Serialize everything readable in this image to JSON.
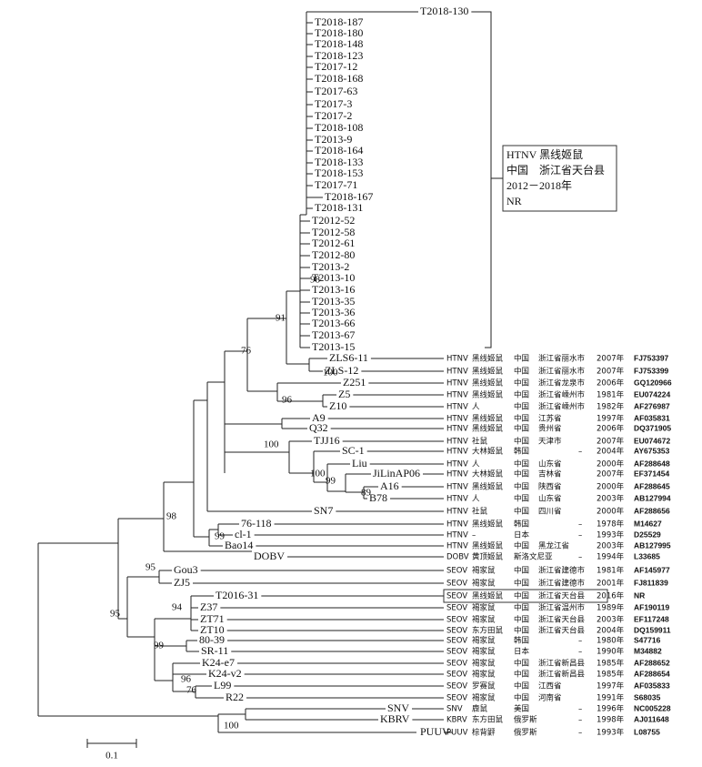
{
  "clade_leaves": [
    "T2018-130",
    "T2018-187",
    "T2018-180",
    "T2018-148",
    "T2018-123",
    "T2017-12",
    "T2018-168",
    "T2017-63",
    "T2017-3",
    "T2017-2",
    "T2018-108",
    "T2013-9",
    "T2018-164",
    "T2018-133",
    "T2018-153",
    "T2017-71",
    "T2018-167",
    "T2018-131",
    "T2012-52",
    "T2012-58",
    "T2012-61",
    "T2012-80",
    "T2013-2",
    "T2013-10",
    "T2013-16",
    "T2013-35",
    "T2013-36",
    "T2013-66",
    "T2013-67",
    "T2013-15"
  ],
  "group_box": {
    "lines": [
      "HTNV 黑线姬鼠",
      "中国　浙江省天台县",
      "2012－2018年",
      "NR"
    ]
  },
  "annotated_leaves": [
    {
      "label": "ZLS6-11",
      "virus": "HTNV",
      "host": "黑线姬鼠",
      "country": "中国",
      "location": "浙江省丽水市",
      "year": "2007年",
      "accession": "FJ753397"
    },
    {
      "label": "ZLS-12",
      "virus": "HTNV",
      "host": "黑线姬鼠",
      "country": "中国",
      "location": "浙江省丽水市",
      "year": "2007年",
      "accession": "FJ753399"
    },
    {
      "label": "Z251",
      "virus": "HTNV",
      "host": "黑线姬鼠",
      "country": "中国",
      "location": "浙江省龙泉市",
      "year": "2006年",
      "accession": "GQ120966"
    },
    {
      "label": "Z5",
      "virus": "HTNV",
      "host": "黑线姬鼠",
      "country": "中国",
      "location": "浙江省嵊州市",
      "year": "1981年",
      "accession": "EU074224"
    },
    {
      "label": "Z10",
      "virus": "HTNV",
      "host": "人",
      "country": "中国",
      "location": "浙江省嵊州市",
      "year": "1982年",
      "accession": "AF276987"
    },
    {
      "label": "A9",
      "virus": "HTNV",
      "host": "黑线姬鼠",
      "country": "中国",
      "location": "江苏省",
      "year": "1997年",
      "accession": "AF035831"
    },
    {
      "label": "Q32",
      "virus": "HTNV",
      "host": "黑线姬鼠",
      "country": "中国",
      "location": "贵州省",
      "year": "2006年",
      "accession": "DQ371905"
    },
    {
      "label": "TJJ16",
      "virus": "HTNV",
      "host": "社鼠",
      "country": "中国",
      "location": "天津市",
      "year": "2007年",
      "accession": "EU074672"
    },
    {
      "label": "SC-1",
      "virus": "HTNV",
      "host": "大林姬鼠",
      "country": "韩国",
      "location": "–",
      "year": "2004年",
      "accession": "AY675353"
    },
    {
      "label": "Liu",
      "virus": "HTNV",
      "host": "人",
      "country": "中国",
      "location": "山东省",
      "year": "2000年",
      "accession": "AF288648"
    },
    {
      "label": "JiLinAP06",
      "virus": "HTNV",
      "host": "大林姬鼠",
      "country": "中国",
      "location": "吉林省",
      "year": "2007年",
      "accession": "EF371454"
    },
    {
      "label": "A16",
      "virus": "HTNV",
      "host": "黑线姬鼠",
      "country": "中国",
      "location": "陕西省",
      "year": "2000年",
      "accession": "AF288645"
    },
    {
      "label": "B78",
      "virus": "HTNV",
      "host": "人",
      "country": "中国",
      "location": "山东省",
      "year": "2003年",
      "accession": "AB127994"
    },
    {
      "label": "SN7",
      "virus": "HTNV",
      "host": "社鼠",
      "country": "中国",
      "location": "四川省",
      "year": "2000年",
      "accession": "AF288656"
    },
    {
      "label": "76-118",
      "virus": "HTNV",
      "host": "黑线姬鼠",
      "country": "韩国",
      "location": "–",
      "year": "1978年",
      "accession": "M14627"
    },
    {
      "label": "cl-1",
      "virus": "HTNV",
      "host": "–",
      "country": "日本",
      "location": "–",
      "year": "1993年",
      "accession": "D25529"
    },
    {
      "label": "Bao14",
      "virus": "HTNV",
      "host": "黑线姬鼠",
      "country": "中国",
      "location": "黑龙江省",
      "year": "2003年",
      "accession": "AB127995"
    },
    {
      "label": "DOBV",
      "virus": "DOBV",
      "host": "黄顶姬鼠",
      "country": "斯洛文尼亚",
      "location": "–",
      "year": "1994年",
      "accession": "L33685"
    },
    {
      "label": "Gou3",
      "virus": "SEOV",
      "host": "褐家鼠",
      "country": "中国",
      "location": "浙江省建德市",
      "year": "1981年",
      "accession": "AF145977"
    },
    {
      "label": "ZJ5",
      "virus": "SEOV",
      "host": "褐家鼠",
      "country": "中国",
      "location": "浙江省建德市",
      "year": "2001年",
      "accession": "FJ811839"
    },
    {
      "label": "T2016-31",
      "virus": "SEOV",
      "host": "黑线姬鼠",
      "country": "中国",
      "location": "浙江省天台县",
      "year": "2016年",
      "accession": "NR"
    },
    {
      "label": "Z37",
      "virus": "SEOV",
      "host": "褐家鼠",
      "country": "中国",
      "location": "浙江省温州市",
      "year": "1989年",
      "accession": "AF190119"
    },
    {
      "label": "ZT71",
      "virus": "SEOV",
      "host": "褐家鼠",
      "country": "中国",
      "location": "浙江省天台县",
      "year": "2003年",
      "accession": "EF117248"
    },
    {
      "label": "ZT10",
      "virus": "SEOV",
      "host": "东方田鼠",
      "country": "中国",
      "location": "浙江省天台县",
      "year": "2004年",
      "accession": "DQ159911"
    },
    {
      "label": "80-39",
      "virus": "SEOV",
      "host": "褐家鼠",
      "country": "韩国",
      "location": "–",
      "year": "1980年",
      "accession": "S47716"
    },
    {
      "label": "SR-11",
      "virus": "SEOV",
      "host": "褐家鼠",
      "country": "日本",
      "location": "–",
      "year": "1990年",
      "accession": "M34882"
    },
    {
      "label": "K24-e7",
      "virus": "SEOV",
      "host": "褐家鼠",
      "country": "中国",
      "location": "浙江省新昌县",
      "year": "1985年",
      "accession": "AF288652"
    },
    {
      "label": "K24-v2",
      "virus": "SEOV",
      "host": "褐家鼠",
      "country": "中国",
      "location": "浙江省新昌县",
      "year": "1985年",
      "accession": "AF288654"
    },
    {
      "label": "L99",
      "virus": "SEOV",
      "host": "罗赛鼠",
      "country": "中国",
      "location": "江西省",
      "year": "1997年",
      "accession": "AF035833"
    },
    {
      "label": "R22",
      "virus": "SEOV",
      "host": "褐家鼠",
      "country": "中国",
      "location": "河南省",
      "year": "1991年",
      "accession": "S68035"
    },
    {
      "label": "SNV",
      "virus": "SNV",
      "host": "鹿鼠",
      "country": "美国",
      "location": "–",
      "year": "1996年",
      "accession": "NC005228"
    },
    {
      "label": "KBRV",
      "virus": "KBRV",
      "host": "东方田鼠",
      "country": "俄罗斯",
      "location": "–",
      "year": "1998年",
      "accession": "AJ011648"
    },
    {
      "label": "PUUV",
      "virus": "PUUV",
      "host": "棕背䶄",
      "country": "俄罗斯",
      "location": "–",
      "year": "1993年",
      "accession": "L08755"
    }
  ],
  "bootstrap": [
    98,
    91,
    76,
    100,
    96,
    100,
    100,
    99,
    89,
    98,
    99,
    95,
    95,
    94,
    99,
    96,
    76,
    100
  ],
  "scale_bar": 0.1
}
